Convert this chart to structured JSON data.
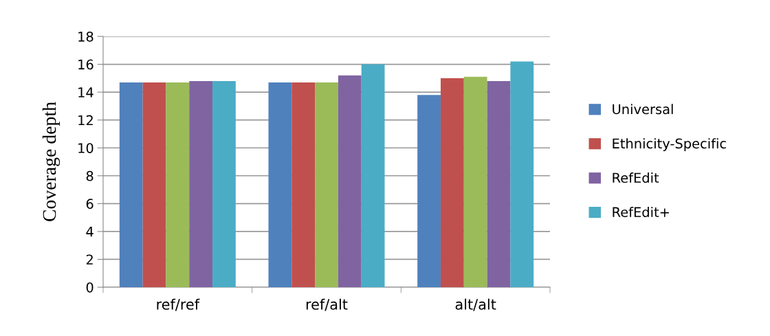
{
  "chart_data": {
    "type": "bar",
    "ylabel": "Coverage depth",
    "categories": [
      "ref/ref",
      "ref/alt",
      "alt/alt"
    ],
    "series": [
      {
        "name": "Universal",
        "color": "#4f81bd",
        "values": [
          14.7,
          14.7,
          13.8
        ]
      },
      {
        "name": "Ethnicity-Specific",
        "color": "#c0504d",
        "values": [
          14.7,
          14.7,
          15.0
        ]
      },
      {
        "color": "#9bbb59",
        "values": [
          14.7,
          14.7,
          15.1
        ]
      },
      {
        "name": "RefEdit",
        "color": "#8064a2",
        "values": [
          14.8,
          15.2,
          14.8
        ]
      },
      {
        "name": "RefEdit+",
        "color": "#4bacc6",
        "values": [
          14.8,
          16.0,
          16.2
        ]
      }
    ],
    "ylim": [
      0,
      18
    ],
    "yticks": [
      0,
      2,
      4,
      6,
      8,
      10,
      12,
      14,
      16,
      18
    ],
    "grid": "y",
    "legend": "right"
  }
}
